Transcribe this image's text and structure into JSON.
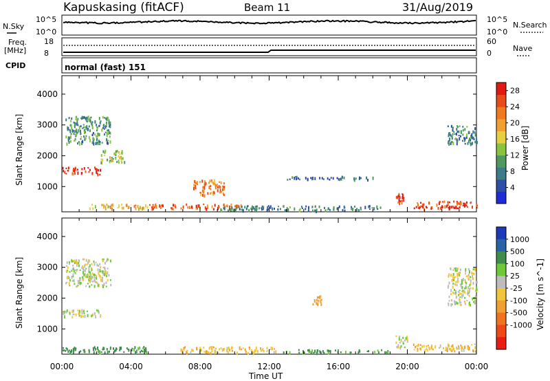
{
  "header": {
    "station": "Kapuskasing (fitACF)",
    "beam": "Beam 11",
    "date": "31/Aug/2019"
  },
  "noise_panel": {
    "left_label": "N.Sky",
    "right_label": "N.Search",
    "tick_top": "10^5",
    "tick_bottom": "10^0"
  },
  "freq_panel": {
    "left_label_1": "Freq.",
    "left_label_2": "[MHz]",
    "tick_top": "18",
    "tick_bottom": "8",
    "right_label": "Nave",
    "right_tick_top": "60",
    "right_tick_bottom": "0"
  },
  "cpid": {
    "label": "CPID",
    "mode": "normal (fast) 151"
  },
  "colors": {
    "power": [
      "#1f2bd6",
      "#2e4fa6",
      "#3d7a8a",
      "#4e9a5e",
      "#88c442",
      "#e6d040",
      "#f0a030",
      "#f07a20",
      "#e84a18",
      "#e01a10"
    ],
    "velocity": [
      "#1d38b8",
      "#2a62a8",
      "#3f8c4c",
      "#6ec83a",
      "#bdbdbd",
      "#f2c43a",
      "#f0a030",
      "#f07420",
      "#ee4818",
      "#e81c10"
    ]
  },
  "chart_data": [
    {
      "type": "heatmap",
      "title": "Power",
      "ylabel": "Slant Range [km]",
      "xlabel": "Time UT",
      "x_ticks": [
        "00:00",
        "04:00",
        "08:00",
        "12:00",
        "16:00",
        "20:00",
        "00:00"
      ],
      "y_ticks": [
        "1000",
        "2000",
        "3000",
        "4000"
      ],
      "ylim": [
        180,
        4600
      ],
      "xlim_hours": [
        0,
        24
      ],
      "colorbar": {
        "label": "Power [dB]",
        "ticks": [
          "4",
          "8",
          "12",
          "16",
          "20",
          "24",
          "28"
        ],
        "range": [
          0,
          30
        ]
      },
      "features": [
        {
          "t_start": 0.0,
          "t_end": 2.2,
          "range_start": 1400,
          "range_end": 1650,
          "power": 28
        },
        {
          "t_start": 2.2,
          "t_end": 3.6,
          "range_start": 1800,
          "range_end": 2200,
          "power": 14
        },
        {
          "t_start": 0.2,
          "t_end": 2.8,
          "range_start": 2400,
          "range_end": 3300,
          "power": 10
        },
        {
          "t_start": 1.5,
          "t_end": 5.0,
          "range_start": 300,
          "range_end": 450,
          "power": 18
        },
        {
          "t_start": 5.0,
          "t_end": 10.5,
          "range_start": 300,
          "range_end": 450,
          "power": 24
        },
        {
          "t_start": 7.6,
          "t_end": 9.4,
          "range_start": 750,
          "range_end": 1250,
          "power": 22
        },
        {
          "t_start": 9.0,
          "t_end": 18.5,
          "range_start": 250,
          "range_end": 400,
          "power": 8
        },
        {
          "t_start": 13.0,
          "t_end": 18.0,
          "range_start": 1250,
          "range_end": 1350,
          "power": 6
        },
        {
          "t_start": 19.3,
          "t_end": 19.8,
          "range_start": 500,
          "range_end": 800,
          "power": 28
        },
        {
          "t_start": 20.3,
          "t_end": 24.0,
          "range_start": 300,
          "range_end": 550,
          "power": 26
        },
        {
          "t_start": 22.3,
          "t_end": 24.0,
          "range_start": 2400,
          "range_end": 3000,
          "power": 8
        }
      ]
    },
    {
      "type": "heatmap",
      "title": "Velocity",
      "ylabel": "Slant Range [km]",
      "xlabel": "Time UT",
      "x_ticks": [
        "00:00",
        "04:00",
        "08:00",
        "12:00",
        "16:00",
        "20:00",
        "00:00"
      ],
      "y_ticks": [
        "1000",
        "2000",
        "3000",
        "4000"
      ],
      "ylim": [
        180,
        4600
      ],
      "xlim_hours": [
        0,
        24
      ],
      "colorbar": {
        "label": "Velocity [m s^-1]",
        "ticks": [
          "1000",
          "500",
          "100",
          "25",
          "-25",
          "-100",
          "-500",
          "-1000"
        ]
      },
      "features": [
        {
          "t_start": 0.0,
          "t_end": 2.2,
          "range_start": 1400,
          "range_end": 1650,
          "velocity": 0
        },
        {
          "t_start": 0.2,
          "t_end": 2.8,
          "range_start": 2400,
          "range_end": 3300,
          "velocity": 0
        },
        {
          "t_start": 0.0,
          "t_end": 5.0,
          "range_start": 250,
          "range_end": 450,
          "velocity": 150
        },
        {
          "t_start": 6.5,
          "t_end": 12.5,
          "range_start": 250,
          "range_end": 450,
          "velocity": -80
        },
        {
          "t_start": 12.5,
          "t_end": 19.0,
          "range_start": 250,
          "range_end": 350,
          "velocity": 120
        },
        {
          "t_start": 14.5,
          "t_end": 15.0,
          "range_start": 1800,
          "range_end": 2100,
          "velocity": -150
        },
        {
          "t_start": 19.3,
          "t_end": 20.0,
          "range_start": 400,
          "range_end": 800,
          "velocity": 0
        },
        {
          "t_start": 20.3,
          "t_end": 24.0,
          "range_start": 300,
          "range_end": 550,
          "velocity": -70
        },
        {
          "t_start": 22.3,
          "t_end": 24.0,
          "range_start": 1800,
          "range_end": 3000,
          "velocity": 0
        }
      ]
    }
  ]
}
